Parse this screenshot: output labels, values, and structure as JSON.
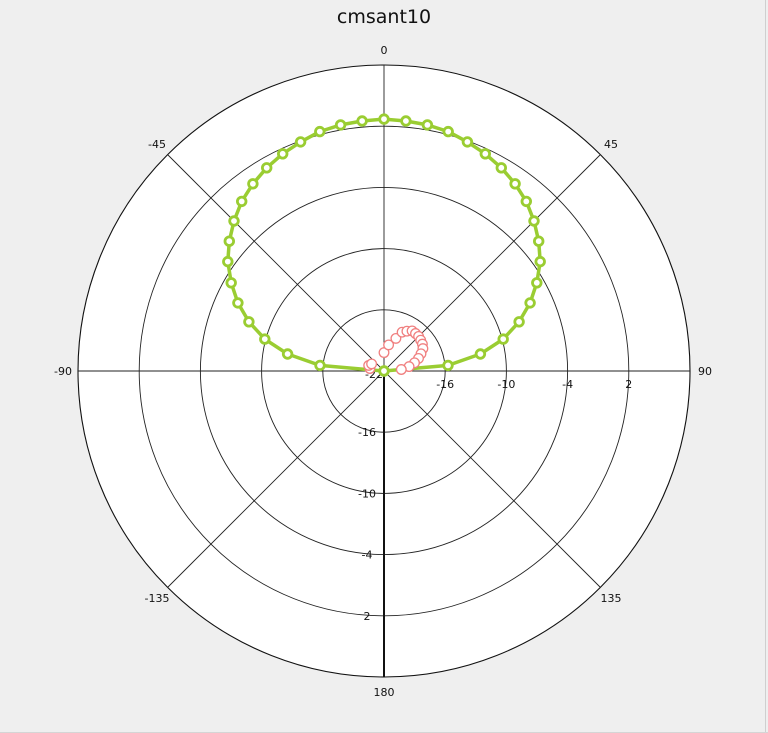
{
  "chart_data": {
    "type": "polar",
    "title": "cmsant10",
    "angle_unit": "degrees",
    "angle_ticks": [
      {
        "angle": 0,
        "label": "0"
      },
      {
        "angle": 45,
        "label": "45"
      },
      {
        "angle": 90,
        "label": "90"
      },
      {
        "angle": 135,
        "label": "135"
      },
      {
        "angle": 180,
        "label": "180"
      },
      {
        "angle": -135,
        "label": "-135"
      },
      {
        "angle": -90,
        "label": "-90"
      },
      {
        "angle": -45,
        "label": "-45"
      }
    ],
    "radial_range": [
      -22,
      8
    ],
    "radial_ticks": [
      {
        "value": -22,
        "label": "-22"
      },
      {
        "value": -16,
        "label": "-16"
      },
      {
        "value": -10,
        "label": "-10"
      },
      {
        "value": -4,
        "label": "-4"
      },
      {
        "value": 2,
        "label": "2"
      }
    ],
    "series": [
      {
        "color": "#9acd32",
        "marker": "hollow-circle",
        "line": true,
        "points": [
          {
            "angle": -90,
            "value": -22.0
          },
          {
            "angle": -85,
            "value": -15.7
          },
          {
            "angle": -80,
            "value": -12.4
          },
          {
            "angle": -75,
            "value": -9.9
          },
          {
            "angle": -70,
            "value": -7.9
          },
          {
            "angle": -65,
            "value": -6.2
          },
          {
            "angle": -60,
            "value": -4.7
          },
          {
            "angle": -55,
            "value": -3.3
          },
          {
            "angle": -50,
            "value": -2.2
          },
          {
            "angle": -45,
            "value": -1.2
          },
          {
            "angle": -40,
            "value": -0.3
          },
          {
            "angle": -35,
            "value": 0.4
          },
          {
            "angle": -30,
            "value": 1.0
          },
          {
            "angle": -25,
            "value": 1.5
          },
          {
            "angle": -20,
            "value": 1.9
          },
          {
            "angle": -15,
            "value": 2.3
          },
          {
            "angle": -10,
            "value": 2.5
          },
          {
            "angle": -5,
            "value": 2.6
          },
          {
            "angle": 0,
            "value": 2.7
          },
          {
            "angle": 5,
            "value": 2.6
          },
          {
            "angle": 10,
            "value": 2.5
          },
          {
            "angle": 15,
            "value": 2.3
          },
          {
            "angle": 20,
            "value": 1.9
          },
          {
            "angle": 25,
            "value": 1.5
          },
          {
            "angle": 30,
            "value": 1.0
          },
          {
            "angle": 35,
            "value": 0.4
          },
          {
            "angle": 40,
            "value": -0.3
          },
          {
            "angle": 45,
            "value": -1.2
          },
          {
            "angle": 50,
            "value": -2.2
          },
          {
            "angle": 55,
            "value": -3.3
          },
          {
            "angle": 60,
            "value": -4.7
          },
          {
            "angle": 65,
            "value": -6.2
          },
          {
            "angle": 70,
            "value": -7.9
          },
          {
            "angle": 75,
            "value": -9.9
          },
          {
            "angle": 80,
            "value": -12.4
          },
          {
            "angle": 85,
            "value": -15.7
          },
          {
            "angle": 90,
            "value": -22.0
          }
        ]
      },
      {
        "color": "#f08080",
        "marker": "hollow-circle",
        "line": false,
        "points": [
          {
            "angle": -80,
            "value": -20.6
          },
          {
            "angle": -70,
            "value": -20.4
          },
          {
            "angle": -60,
            "value": -20.6
          },
          {
            "angle": 0,
            "value": -20.2
          },
          {
            "angle": 10,
            "value": -19.4
          },
          {
            "angle": 20,
            "value": -18.6
          },
          {
            "angle": 25,
            "value": -17.8
          },
          {
            "angle": 30,
            "value": -17.5
          },
          {
            "angle": 35,
            "value": -17.2
          },
          {
            "angle": 40,
            "value": -17.2
          },
          {
            "angle": 45,
            "value": -17.2
          },
          {
            "angle": 50,
            "value": -17.3
          },
          {
            "angle": 55,
            "value": -17.4
          },
          {
            "angle": 60,
            "value": -17.6
          },
          {
            "angle": 65,
            "value": -18.0
          },
          {
            "angle": 70,
            "value": -18.4
          },
          {
            "angle": 75,
            "value": -18.9
          },
          {
            "angle": 80,
            "value": -19.5
          },
          {
            "angle": 85,
            "value": -20.3
          }
        ]
      }
    ]
  }
}
